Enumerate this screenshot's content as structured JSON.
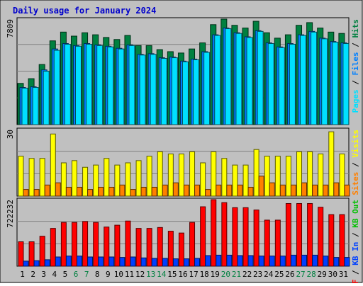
{
  "chart_data": {
    "type": "bar",
    "title": "Daily usage for January 2024",
    "categories": [
      "1",
      "2",
      "3",
      "4",
      "5",
      "6",
      "7",
      "8",
      "9",
      "10",
      "11",
      "12",
      "13",
      "14",
      "15",
      "16",
      "17",
      "18",
      "19",
      "20",
      "21",
      "22",
      "23",
      "24",
      "25",
      "26",
      "27",
      "28",
      "29",
      "30",
      "31"
    ],
    "weekend_days": [
      "6",
      "7",
      "13",
      "14",
      "20",
      "21",
      "27",
      "28"
    ],
    "colors": {
      "background": "#c0c0c0",
      "title": "#0000cc",
      "hits": "#008040",
      "files": "#0080ff",
      "pages": "#00e0ff",
      "visits": "#ffff00",
      "sites": "#ff8000",
      "kb_in": "#0040ff",
      "kb_out": "#00c000",
      "kb_f": "#ff0000",
      "weekend_label": "#008040"
    },
    "panels": [
      {
        "name": "hits-files-pages",
        "ymax_label": "7809",
        "ymax": 7809,
        "legend": [
          {
            "text": "Pages",
            "color": "#00e0ff"
          },
          {
            "text": "Files",
            "color": "#0080ff"
          },
          {
            "text": "Hits",
            "color": "#008040"
          }
        ],
        "series": [
          {
            "name": "Hits",
            "color": "#008040",
            "values": [
              3050,
              3400,
              4450,
              6200,
              6850,
              6550,
              6800,
              6650,
              6450,
              6300,
              6600,
              5850,
              5850,
              5550,
              5400,
              5300,
              5600,
              6050,
              7400,
              7809,
              7350,
              7150,
              7650,
              6800,
              6400,
              6650,
              7350,
              7550,
              7150,
              6850,
              6750
            ]
          },
          {
            "name": "Files",
            "color": "#0080ff",
            "values": [
              2750,
              2800,
              4050,
              5600,
              6000,
              5850,
              6000,
              5900,
              5800,
              5650,
              5900,
              5200,
              5250,
              4950,
              5000,
              4700,
              4850,
              5400,
              6650,
              7150,
              6800,
              6500,
              6950,
              6050,
              5750,
              6000,
              6650,
              6900,
              6400,
              6150,
              6050
            ]
          },
          {
            "name": "Pages",
            "color": "#00e0ff",
            "values": [
              2700,
              2750,
              3950,
              5500,
              5950,
              5800,
              5950,
              5850,
              5750,
              5600,
              5850,
              5150,
              5200,
              4900,
              4950,
              4650,
              4800,
              5350,
              6600,
              7100,
              6750,
              6450,
              6900,
              6000,
              5700,
              5950,
              6600,
              6850,
              6350,
              6100,
              6000
            ]
          }
        ]
      },
      {
        "name": "visits-sites",
        "ymax_label": "30",
        "ymax": 30,
        "legend": [
          {
            "text": "Sites",
            "color": "#ff8000"
          },
          {
            "text": "Visits",
            "color": "#ffff00"
          }
        ],
        "series": [
          {
            "name": "Visits",
            "color": "#ffff00",
            "values": [
              18,
              17,
              17,
              28,
              15,
              16,
              13,
              14,
              17,
              14,
              15,
              16,
              18,
              20,
              19,
              19,
              20,
              15,
              20,
              17,
              14,
              14,
              21,
              18,
              18,
              18,
              20,
              20,
              19,
              29,
              19
            ]
          },
          {
            "name": "Sites",
            "color": "#ff8000",
            "values": [
              3,
              3,
              5,
              6,
              4,
              4,
              3,
              4,
              4,
              5,
              3,
              4,
              4,
              5,
              6,
              5,
              5,
              3,
              5,
              5,
              5,
              4,
              9,
              6,
              5,
              5,
              6,
              5,
              5,
              6,
              5
            ]
          }
        ]
      },
      {
        "name": "kbytes",
        "ymax_label": "722232",
        "ymax": 722232,
        "legend": [
          {
            "text": "KB F",
            "color": "#ff0000"
          },
          {
            "text": "KB In",
            "color": "#0040ff"
          },
          {
            "text": "KB Out",
            "color": "#00c000"
          }
        ],
        "series": [
          {
            "name": "KB F",
            "color": "#ff0000",
            "values": [
              265000,
              265000,
              325000,
              410000,
              475000,
              475000,
              485000,
              475000,
              425000,
              445000,
              490000,
              410000,
              410000,
              420000,
              380000,
              360000,
              475000,
              645000,
              722232,
              690000,
              635000,
              635000,
              610000,
              500000,
              500000,
              680000,
              680000,
              680000,
              640000,
              560000,
              560000
            ]
          },
          {
            "name": "KB In",
            "color": "#0040ff",
            "values": [
              55000,
              60000,
              70000,
              100000,
              110000,
              110000,
              100000,
              100000,
              100000,
              95000,
              100000,
              90000,
              85000,
              85000,
              80000,
              80000,
              85000,
              115000,
              120000,
              120000,
              115000,
              115000,
              110000,
              110000,
              110000,
              120000,
              120000,
              120000,
              110000,
              95000,
              95000
            ]
          }
        ]
      }
    ]
  }
}
